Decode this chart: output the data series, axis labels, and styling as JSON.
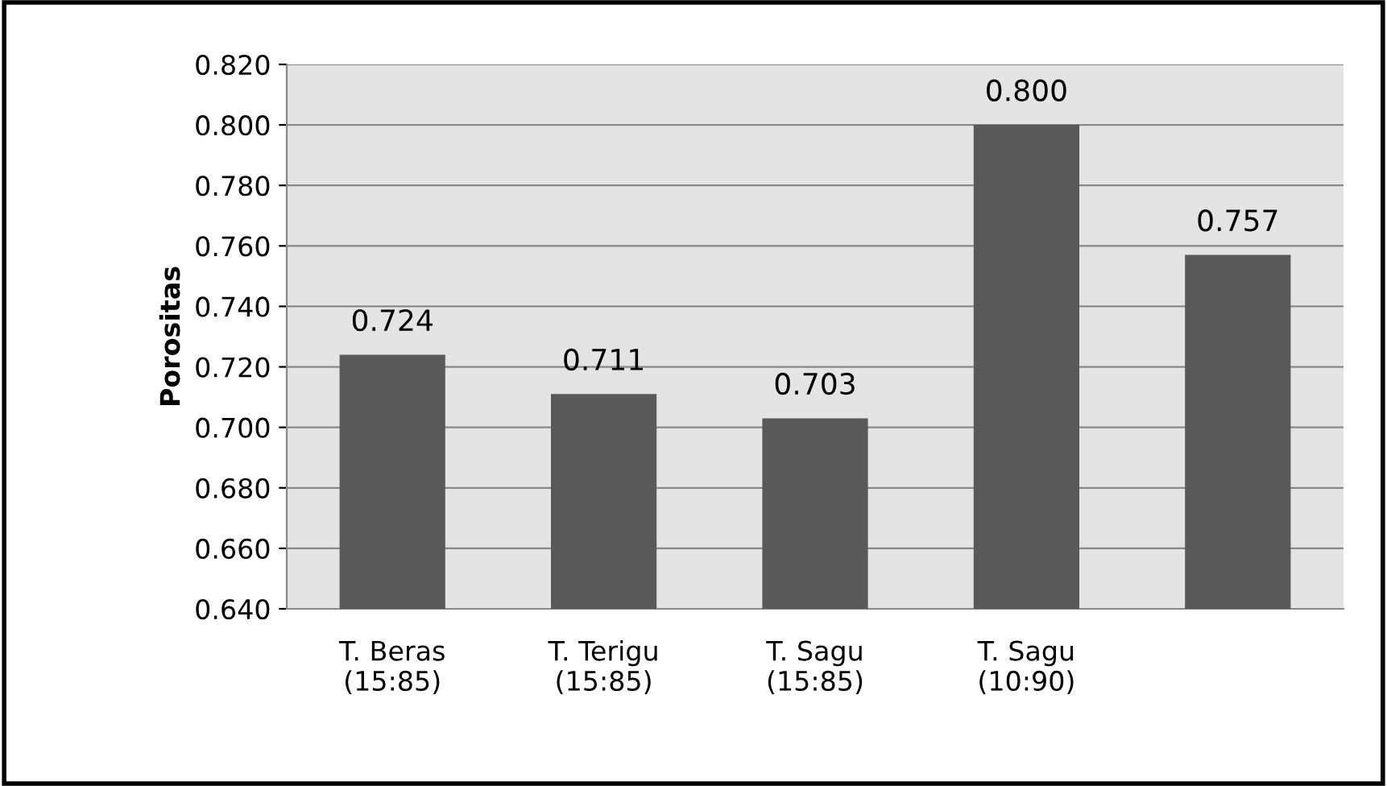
{
  "chart_data": {
    "type": "bar",
    "ylabel": "Porositas",
    "categories": [
      "T. Beras\n(15:85)",
      "T. Terigu\n(15:85)",
      "T. Sagu\n(15:85)",
      "T. Sagu\n(10:90)",
      null
    ],
    "values": [
      0.724,
      0.711,
      0.703,
      0.8,
      0.757
    ],
    "value_labels": [
      "0.724",
      "0.711",
      "0.703",
      "0.800",
      "0.757"
    ],
    "color": "#595959",
    "ylim": [
      0.64,
      0.82
    ],
    "yticks": [
      {
        "value": 0.64,
        "label": "0.640"
      },
      {
        "value": 0.66,
        "label": "0.660"
      },
      {
        "value": 0.68,
        "label": "0.680"
      },
      {
        "value": 0.7,
        "label": "0.700"
      },
      {
        "value": 0.72,
        "label": "0.720"
      },
      {
        "value": 0.74,
        "label": "0.740"
      },
      {
        "value": 0.76,
        "label": "0.760"
      },
      {
        "value": 0.78,
        "label": "0.780"
      },
      {
        "value": 0.8,
        "label": "0.800"
      },
      {
        "value": 0.82,
        "label": "0.820"
      }
    ],
    "grid": "y"
  }
}
